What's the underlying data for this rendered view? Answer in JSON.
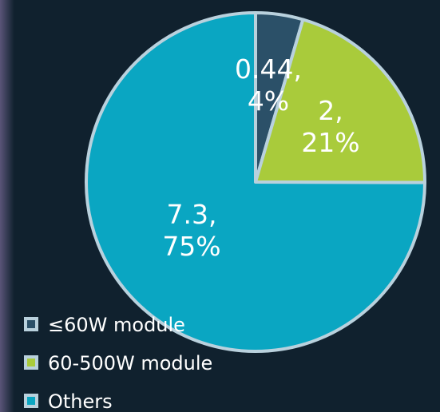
{
  "chart_data": {
    "type": "pie",
    "categories": [
      "≤60W module",
      "60-500W module",
      "Others"
    ],
    "values": [
      0.44,
      2,
      7.3
    ],
    "value_labels": [
      [
        "0.44,",
        "4%"
      ],
      [
        "2,",
        "21%"
      ],
      [
        "7.3,",
        "75%"
      ]
    ],
    "colors": [
      "#2b5068",
      "#a9cb3b",
      "#0aa6c2"
    ],
    "legend": "bottom-left"
  }
}
